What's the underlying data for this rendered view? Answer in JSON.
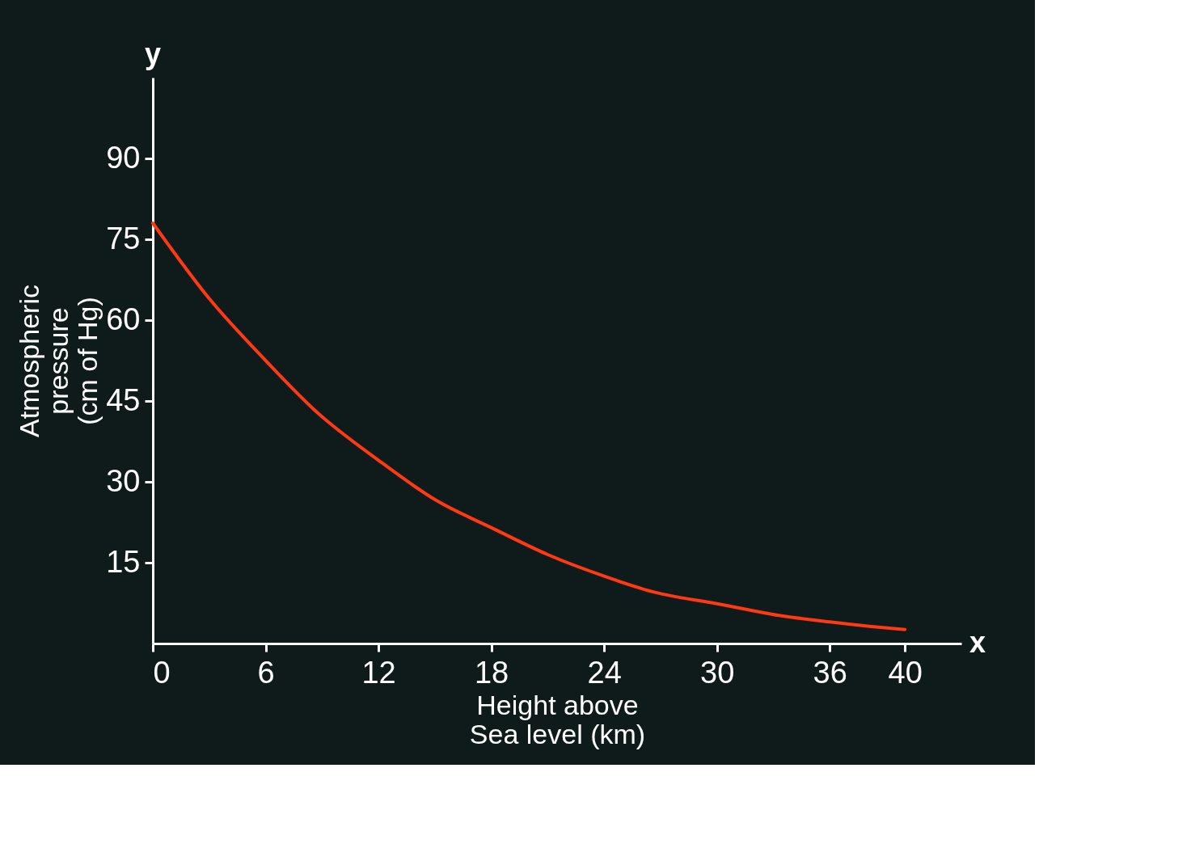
{
  "chart_data": {
    "type": "line",
    "xlabel": "Height above\nSea level (km)",
    "ylabel": "Atmospheric\npressure\n(cm of Hg)",
    "x": [
      0,
      3,
      6,
      8.7,
      12,
      15.1,
      18,
      21,
      24,
      26.7,
      30,
      33.3,
      36,
      38.1,
      40
    ],
    "series": [
      {
        "color": "#ff3a10",
        "values": [
          78,
          64,
          52.5,
          43,
          34,
          26.5,
          21.5,
          16.5,
          12.5,
          9.5,
          7.4,
          5.2,
          4.0,
          3.2,
          2.6
        ]
      }
    ],
    "xlim": [
      0,
      43
    ],
    "ylim": [
      0,
      105
    ],
    "xticks": [
      0,
      6,
      12,
      18,
      24,
      30,
      36,
      40
    ],
    "yticks": [
      15,
      30,
      45,
      60,
      75,
      90
    ],
    "grid": false,
    "marker": "none",
    "line_style": "solid",
    "annotations": [
      "y",
      "x"
    ]
  }
}
